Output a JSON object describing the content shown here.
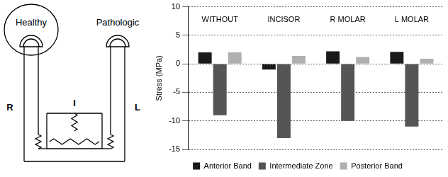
{
  "diagram": {
    "condyles": [
      "Healthy",
      "Pathologic"
    ],
    "sides": [
      "R",
      "I",
      "L"
    ]
  },
  "chart_data": {
    "type": "bar",
    "y_label": "Stress (MPa)",
    "categories": [
      "WITHOUT",
      "INCISOR",
      "R MOLAR",
      "L MOLAR"
    ],
    "series": [
      {
        "name": "Anterior Band",
        "color": "#1a1a1a",
        "values": [
          2,
          -1,
          2.2,
          2.1
        ]
      },
      {
        "name": "Intermediate Zone",
        "color": "#555555",
        "values": [
          -9,
          -13,
          -10,
          -11
        ]
      },
      {
        "name": "Posterior Band",
        "color": "#b0b0b0",
        "values": [
          2,
          1.4,
          1.2,
          0.9
        ]
      }
    ],
    "ylim": [
      -15,
      10
    ],
    "yticks": [
      -15,
      -10,
      -5,
      0,
      5,
      10
    ],
    "grid": true,
    "legend": "bottom",
    "tick_labels": "y"
  }
}
